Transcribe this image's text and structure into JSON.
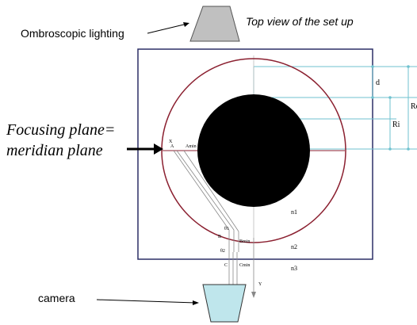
{
  "labels": {
    "top_lighting": "Ombroscopic lighting",
    "top_view": "Top view of the set up",
    "focusing_line1": "Focusing plane=",
    "focusing_line2": "meridian plane",
    "camera": "camera"
  },
  "points": {
    "x": "X",
    "a": "A",
    "amin": "Amin",
    "b": "B",
    "bmin": "Bmin",
    "c": "C",
    "cmin": "Cmin",
    "y": "Y",
    "theta1": "θ1",
    "theta2": "θ2"
  },
  "dimensions": {
    "d": "d",
    "ri": "Ri",
    "re": "Re"
  },
  "media": {
    "n1": "n1",
    "n2": "n2",
    "n3": "n3"
  },
  "colors": {
    "outer_circle": "#8b2030",
    "dimension_lines": "#6fc2cf",
    "lamp_fill": "#c0c0c0",
    "camera_fill": "#bfe6ec",
    "frame": "#2b2f66",
    "inner_disc": "#000000"
  }
}
